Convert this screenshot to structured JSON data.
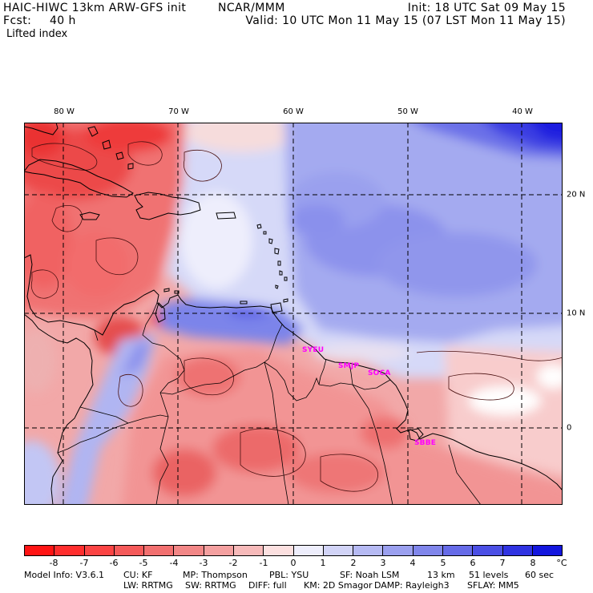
{
  "header": {
    "model_title": "HAIC-HIWC 13km ARW-GFS init",
    "org": "NCAR/MMM",
    "forecast_label": "Fcst:",
    "forecast_hours": "40 h",
    "field_name": "Lifted index",
    "init_time": "Init: 18 UTC Sat 09 May 15",
    "valid_time": "Valid: 10 UTC Mon 11 May 15 (07 LST Mon 11 May 15)"
  },
  "map": {
    "longitude_labels": [
      "80 W",
      "70 W",
      "60 W",
      "50 W",
      "40 W"
    ],
    "latitude_labels": [
      "20 N",
      "10 N",
      "0"
    ],
    "stations": [
      "SYEU",
      "SMJP",
      "SOCA",
      "SBBE"
    ]
  },
  "colorbar": {
    "labels": [
      "-8",
      "-7",
      "-6",
      "-5",
      "-4",
      "-3",
      "-2",
      "-1",
      "0",
      "1",
      "2",
      "3",
      "4",
      "5",
      "6",
      "7",
      "8"
    ],
    "unit": "°C",
    "colors": [
      "#ff1414",
      "#ff2e2e",
      "#fb4444",
      "#f55a5a",
      "#f27070",
      "#f28787",
      "#f4a0a0",
      "#f7baba",
      "#fce0e0",
      "#eeeefc",
      "#d2d4f7",
      "#b6baf3",
      "#9ba0ef",
      "#8086eb",
      "#666be8",
      "#4b4fe5",
      "#3033e2",
      "#1316de"
    ]
  },
  "footer": {
    "line1": [
      "Model Info: V3.6.1",
      "CU: KF",
      "MP: Thompson",
      "PBL: YSU",
      "SF: Noah LSM",
      "13 km",
      "51 levels",
      "60 sec"
    ],
    "line2": [
      "LW: RRTMG",
      "SW: RRTMG",
      "DIFF: full",
      "KM: 2D Smagor",
      "DAMP: Rayleigh3",
      "SFLAY: MM5"
    ]
  }
}
